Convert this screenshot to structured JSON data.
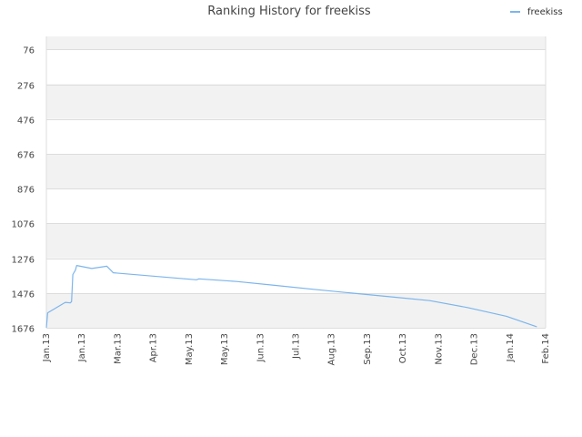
{
  "chart_data": {
    "type": "line",
    "title": "Ranking History for freekiss",
    "xlabel": "",
    "ylabel": "",
    "y_inverted": true,
    "ylim": [
      1676,
      1
    ],
    "yticks": [
      76,
      276,
      476,
      676,
      876,
      1076,
      1276,
      1476,
      1676
    ],
    "x_range": [
      "2013-01-01",
      "2014-02-01"
    ],
    "xtick_labels": [
      "Jan.13",
      "Jan.13",
      "Mar.13",
      "Apr.13",
      "May.13",
      "May.13",
      "Jun.13",
      "Jul.13",
      "Aug.13",
      "Sep.13",
      "Oct.13",
      "Nov.13",
      "Dec.13",
      "Jan.14",
      "Feb.14"
    ],
    "grid": true,
    "legend_position": "top-right",
    "colors": {
      "series": "#7cb5ec",
      "band": "#f2f2f2",
      "grid": "#dddddd",
      "text": "#444444"
    },
    "series": [
      {
        "name": "freekiss",
        "points": [
          {
            "x": "2013-01-01",
            "y": 1676
          },
          {
            "x": "2013-01-02",
            "y": 1590
          },
          {
            "x": "2013-01-16",
            "y": 1530
          },
          {
            "x": "2013-01-20",
            "y": 1533
          },
          {
            "x": "2013-01-21",
            "y": 1525
          },
          {
            "x": "2013-01-22",
            "y": 1370
          },
          {
            "x": "2013-01-24",
            "y": 1345
          },
          {
            "x": "2013-01-25",
            "y": 1318
          },
          {
            "x": "2013-02-06",
            "y": 1335
          },
          {
            "x": "2013-02-18",
            "y": 1322
          },
          {
            "x": "2013-02-23",
            "y": 1360
          },
          {
            "x": "2013-04-30",
            "y": 1400
          },
          {
            "x": "2013-05-02",
            "y": 1395
          },
          {
            "x": "2013-06-01",
            "y": 1410
          },
          {
            "x": "2013-07-01",
            "y": 1432
          },
          {
            "x": "2013-08-01",
            "y": 1455
          },
          {
            "x": "2013-09-01",
            "y": 1477
          },
          {
            "x": "2013-10-01",
            "y": 1498
          },
          {
            "x": "2013-11-01",
            "y": 1520
          },
          {
            "x": "2013-12-01",
            "y": 1560
          },
          {
            "x": "2014-01-01",
            "y": 1610
          },
          {
            "x": "2014-01-25",
            "y": 1670
          }
        ]
      }
    ]
  }
}
